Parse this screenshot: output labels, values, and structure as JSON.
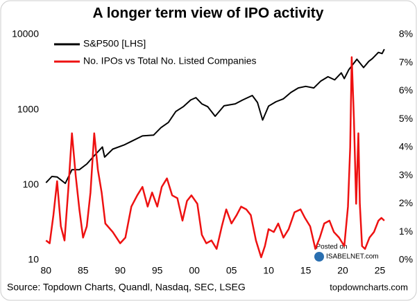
{
  "chart_data": {
    "type": "line",
    "title": "A longer term view of IPO activity",
    "source": "Source: Topdown Charts, Quandl, Nasdaq, SEC, LSEG",
    "credit": "topdowncharts.com",
    "watermark": [
      "Posted on",
      "ISABELNET.com"
    ],
    "xlim": [
      1979.6,
      2025.7
    ],
    "xticks": [
      {
        "value": 1980,
        "label": "80"
      },
      {
        "value": 1985,
        "label": "85"
      },
      {
        "value": 1990,
        "label": "90"
      },
      {
        "value": 1995,
        "label": "95"
      },
      {
        "value": 2000,
        "label": "00"
      },
      {
        "value": 2005,
        "label": "05"
      },
      {
        "value": 2010,
        "label": "10"
      },
      {
        "value": 2015,
        "label": "15"
      },
      {
        "value": 2020,
        "label": "20"
      },
      {
        "value": 2025,
        "label": "25"
      }
    ],
    "ylim": [
      10,
      10000
    ],
    "ylog": true,
    "yticks": [
      10,
      100,
      1000,
      10000
    ],
    "y2lim": [
      0,
      8
    ],
    "y2ticks": [
      {
        "value": 0,
        "label": "0%"
      },
      {
        "value": 1,
        "label": "1%"
      },
      {
        "value": 2,
        "label": "2%"
      },
      {
        "value": 3,
        "label": "3%"
      },
      {
        "value": 4,
        "label": "4%"
      },
      {
        "value": 5,
        "label": "5%"
      },
      {
        "value": 6,
        "label": "6%"
      },
      {
        "value": 7,
        "label": "7%"
      },
      {
        "value": 8,
        "label": "8%"
      }
    ],
    "grid": false,
    "legend": "top-left",
    "series": [
      {
        "name": "S&P500 [LHS]",
        "color": "#000000",
        "x": [
          1980,
          1980.8,
          1981.5,
          1982.6,
          1983.5,
          1984.5,
          1985.5,
          1986.5,
          1987.6,
          1987.9,
          1989,
          1990.5,
          1991.5,
          1993,
          1994.5,
          1995.5,
          1996.5,
          1997.5,
          1998.5,
          1999.5,
          2000.2,
          2001,
          2001.8,
          2002.8,
          2004,
          2005.5,
          2006.5,
          2007.8,
          2008.5,
          2009.2,
          2010,
          2011,
          2012,
          2013,
          2014,
          2015,
          2016.1,
          2017,
          2018,
          2018.9,
          2019.8,
          2020.2,
          2020.8,
          2021.9,
          2022.8,
          2023.5,
          2024,
          2024.8,
          2025.3,
          2025.6
        ],
        "values": [
          107,
          130,
          128,
          105,
          160,
          160,
          190,
          245,
          320,
          235,
          300,
          340,
          380,
          450,
          460,
          580,
          680,
          950,
          1100,
          1350,
          1450,
          1200,
          1100,
          820,
          1130,
          1200,
          1350,
          1550,
          1250,
          730,
          1120,
          1280,
          1400,
          1700,
          1950,
          2050,
          1950,
          2400,
          2750,
          2500,
          3100,
          2600,
          3400,
          4700,
          3650,
          4400,
          4800,
          5800,
          5600,
          6400
        ]
      },
      {
        "name": "No. IPOs vs Total No. Listed Companies",
        "color": "#ee1111",
        "axis": "y2",
        "x": [
          1980,
          1980.5,
          1981,
          1981.5,
          1982,
          1982.5,
          1983,
          1983.5,
          1984,
          1984.5,
          1985,
          1985.5,
          1986,
          1986.5,
          1987,
          1987.5,
          1988,
          1989,
          1990,
          1990.7,
          1991.5,
          1992.3,
          1993,
          1993.7,
          1994.3,
          1995,
          1995.6,
          1996.3,
          1997,
          1997.7,
          1998.4,
          1999,
          1999.6,
          2000.4,
          2001,
          2001.6,
          2002.3,
          2003,
          2003.7,
          2004.3,
          2005,
          2005.7,
          2006.3,
          2007,
          2007.6,
          2008.3,
          2009,
          2009.5,
          2010,
          2010.7,
          2011.3,
          2012,
          2012.7,
          2013.5,
          2014.3,
          2014.9,
          2015.6,
          2016.3,
          2016.9,
          2017.5,
          2018.2,
          2018.8,
          2019.5,
          2020.2,
          2020.7,
          2021,
          2021.2,
          2021.5,
          2021.8,
          2022.1,
          2022.3,
          2022.6,
          2023,
          2023.6,
          2024.2,
          2024.8,
          2025.2,
          2025.6
        ],
        "values": [
          0.7,
          0.6,
          1.6,
          2.8,
          1.2,
          0.7,
          2.5,
          4.5,
          3.0,
          1.8,
          0.8,
          1.2,
          2.4,
          4.5,
          3.2,
          2.4,
          1.3,
          1.0,
          0.6,
          0.8,
          1.9,
          2.3,
          2.6,
          1.9,
          2.4,
          1.9,
          2.6,
          2.9,
          2.3,
          2.2,
          1.4,
          2.1,
          2.3,
          2.0,
          0.9,
          0.6,
          0.7,
          0.4,
          1.2,
          1.8,
          1.3,
          1.6,
          1.9,
          1.8,
          1.6,
          0.7,
          0.1,
          0.5,
          1.1,
          1.0,
          1.3,
          0.8,
          1.1,
          1.7,
          1.8,
          1.5,
          1.2,
          0.4,
          0.8,
          1.3,
          1.4,
          1.0,
          0.8,
          0.5,
          1.9,
          4.0,
          7.2,
          5.0,
          2.0,
          4.5,
          2.0,
          0.5,
          0.4,
          0.8,
          1.0,
          1.4,
          1.5,
          1.4
        ]
      }
    ]
  }
}
